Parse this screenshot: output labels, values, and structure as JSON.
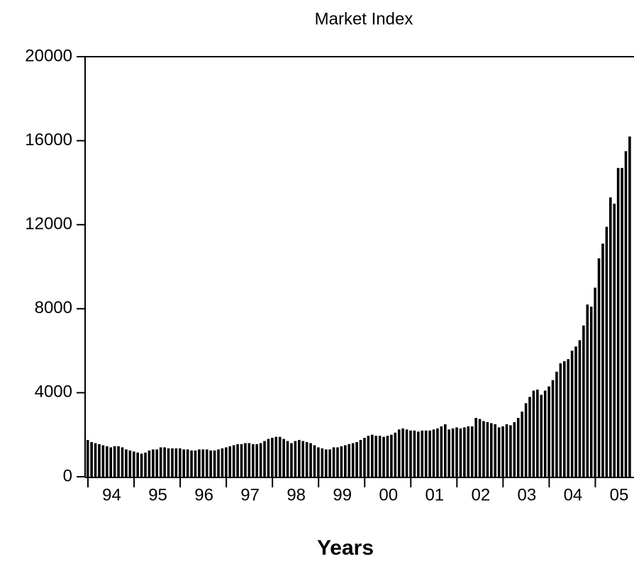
{
  "chart_data": {
    "type": "bar",
    "title": "Market Index",
    "x_label": "Years",
    "categories": [
      null,
      null,
      null,
      null,
      null,
      "94",
      null,
      null,
      null,
      null,
      null,
      null,
      null,
      null,
      null,
      null,
      null,
      "95",
      null,
      null,
      null,
      null,
      null,
      null,
      null,
      null,
      null,
      null,
      null,
      "96",
      null,
      null,
      null,
      null,
      null,
      null,
      null,
      null,
      null,
      null,
      null,
      "97",
      null,
      null,
      null,
      null,
      null,
      null,
      null,
      null,
      null,
      null,
      null,
      "98",
      null,
      null,
      null,
      null,
      null,
      null,
      null,
      null,
      null,
      null,
      null,
      "99",
      null,
      null,
      null,
      null,
      null,
      null,
      null,
      null,
      null,
      null,
      null,
      "00",
      null,
      null,
      null,
      null,
      null,
      null,
      null,
      null,
      null,
      null,
      null,
      "01",
      null,
      null,
      null,
      null,
      null,
      null,
      null,
      null,
      null,
      null,
      null,
      "02",
      null,
      null,
      null,
      null,
      null,
      null,
      null,
      null,
      null,
      null,
      null,
      "03",
      null,
      null,
      null,
      null,
      null,
      null,
      null,
      null,
      null,
      null,
      null,
      "04",
      null,
      null,
      null,
      null,
      null,
      null,
      null,
      null,
      null,
      null,
      null,
      "05",
      null,
      null,
      null,
      null
    ],
    "values": [
      1750,
      1650,
      1600,
      1550,
      1500,
      1450,
      1400,
      1450,
      1450,
      1400,
      1300,
      1250,
      1200,
      1150,
      1100,
      1150,
      1250,
      1300,
      1300,
      1400,
      1400,
      1350,
      1350,
      1350,
      1350,
      1300,
      1300,
      1250,
      1250,
      1300,
      1300,
      1300,
      1250,
      1250,
      1300,
      1350,
      1400,
      1450,
      1500,
      1550,
      1550,
      1600,
      1600,
      1550,
      1550,
      1600,
      1700,
      1800,
      1850,
      1900,
      1900,
      1800,
      1700,
      1600,
      1700,
      1750,
      1700,
      1650,
      1600,
      1500,
      1400,
      1350,
      1300,
      1300,
      1400,
      1400,
      1450,
      1500,
      1550,
      1600,
      1650,
      1750,
      1850,
      1950,
      2000,
      1950,
      1950,
      1900,
      1950,
      2000,
      2100,
      2250,
      2300,
      2250,
      2200,
      2200,
      2150,
      2200,
      2200,
      2200,
      2250,
      2300,
      2400,
      2500,
      2250,
      2300,
      2350,
      2300,
      2350,
      2400,
      2400,
      2800,
      2750,
      2650,
      2600,
      2550,
      2500,
      2350,
      2400,
      2500,
      2450,
      2600,
      2800,
      3100,
      3500,
      3800,
      4100,
      4150,
      3900,
      4100,
      4300,
      4600,
      5000,
      5400,
      5500,
      5600,
      6000,
      6200,
      6500,
      7200,
      8200,
      8100,
      9000,
      10400,
      11100,
      11900,
      13300,
      13000,
      14700,
      14700,
      15500,
      16200
    ],
    "color": "#000000",
    "ylim": [
      0,
      20000
    ],
    "yticks": [
      0,
      4000,
      8000,
      12000,
      16000,
      20000
    ]
  }
}
